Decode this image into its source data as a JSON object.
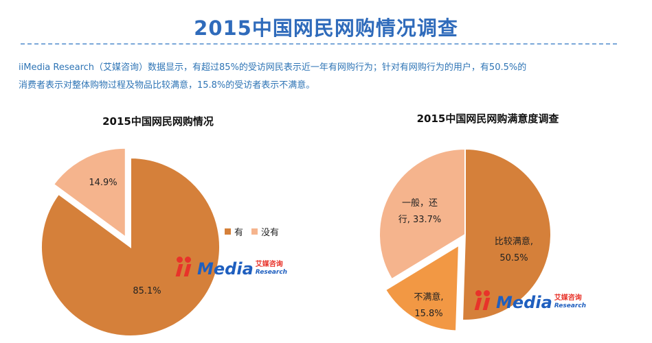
{
  "page": {
    "title": "2015中国网民网购情况调查",
    "summary_line1": "iiMedia Research（艾媒咨询）数据显示，有超过85%的受访网民表示近一年有网购行为；针对有网购行为的用户，有50.5%的",
    "summary_line2": "消费者表示对整体购物过程及物品比较满意，15.8%的受访者表示不满意。"
  },
  "logo": {
    "word": "Media",
    "cn": "艾媒咨询",
    "en": "Research"
  },
  "colors": {
    "title": "#2f6bbb",
    "summary": "#2e74b5",
    "dark_orange": "#d5803a",
    "light_peach": "#f5b48d",
    "orange": "#f29844"
  },
  "chart_data": [
    {
      "type": "pie",
      "title": "2015中国网民网购情况",
      "legend_position": "right",
      "slices": [
        {
          "label": "有",
          "value": 85.1,
          "display": "85.1%",
          "color": "#d5803a",
          "exploded": false
        },
        {
          "label": "没有",
          "value": 14.9,
          "display": "14.9%",
          "color": "#f5b48d",
          "exploded": true
        }
      ]
    },
    {
      "type": "pie",
      "title": "2015中国网民网购满意度调查",
      "legend_position": "none",
      "slices": [
        {
          "label": "比较满意",
          "value": 50.5,
          "display": "比较满意,\n50.5%",
          "color": "#d5803a",
          "exploded": false
        },
        {
          "label": "不满意",
          "value": 15.8,
          "display": "不满意,\n15.8%",
          "color": "#f29844",
          "exploded": true
        },
        {
          "label": "一般，还行",
          "value": 33.7,
          "display": "一般，还\n行, 33.7%",
          "color": "#f5b48d",
          "exploded": false
        }
      ]
    }
  ]
}
